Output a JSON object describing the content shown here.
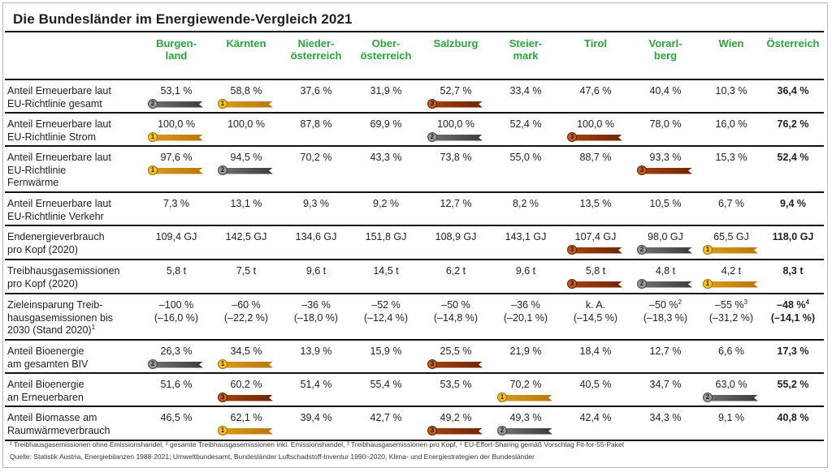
{
  "title": "Die Bundesländer im Energiewende-Vergleich 2021",
  "columns": [
    "Burgen-\nland",
    "Kärnten",
    "Nieder-\nösterreich",
    "Ober-\nösterreich",
    "Salzburg",
    "Steier-\nmark",
    "Tirol",
    "Vorarl-\nberg",
    "Wien",
    "Österreich"
  ],
  "rows": [
    {
      "label": "Anteil Erneuerbare laut\nEU-Richtlinie gesamt",
      "height": 41,
      "cells": [
        {
          "v": "53,1 %",
          "m": "silver"
        },
        {
          "v": "58,8 %",
          "m": "gold"
        },
        {
          "v": "37,6 %"
        },
        {
          "v": "31,9 %"
        },
        {
          "v": "52,7 %",
          "m": "bronze"
        },
        {
          "v": "33,4 %"
        },
        {
          "v": "47,6 %"
        },
        {
          "v": "40,4 %"
        },
        {
          "v": "10,3 %"
        },
        {
          "v": "36,4 %"
        }
      ]
    },
    {
      "label": "Anteil Erneuerbare laut\nEU-Richtlinie Strom",
      "height": 41,
      "cells": [
        {
          "v": "100,0 %",
          "m": "gold"
        },
        {
          "v": "100,0 %"
        },
        {
          "v": "87,8 %"
        },
        {
          "v": "69,9 %"
        },
        {
          "v": "100,0 %",
          "m": "silver"
        },
        {
          "v": "52,4 %"
        },
        {
          "v": "100,0 %",
          "m": "bronze"
        },
        {
          "v": "78,0 %"
        },
        {
          "v": "16,0 %"
        },
        {
          "v": "76,2 %"
        }
      ]
    },
    {
      "label": "Anteil Erneuerbare laut\nEU-Richtlinie\nFernwärme",
      "height": 57,
      "cells": [
        {
          "v": "97,6 %",
          "m": "gold"
        },
        {
          "v": "94,5 %",
          "m": "silver"
        },
        {
          "v": "70,2 %"
        },
        {
          "v": "43,3 %"
        },
        {
          "v": "73,8 %"
        },
        {
          "v": "55,0 %"
        },
        {
          "v": "88,7 %"
        },
        {
          "v": "93,3 %",
          "m": "bronze"
        },
        {
          "v": "15,3 %"
        },
        {
          "v": "52,4 %"
        }
      ]
    },
    {
      "label": "Anteil Erneuerbare laut\nEU-Richtlinie Verkehr",
      "height": 41,
      "cells": [
        {
          "v": "7,3 %"
        },
        {
          "v": "13,1 %"
        },
        {
          "v": "9,3 %"
        },
        {
          "v": "9,2 %"
        },
        {
          "v": "12,7 %"
        },
        {
          "v": "8,2 %"
        },
        {
          "v": "13,5 %"
        },
        {
          "v": "10,5 %"
        },
        {
          "v": "6,7 %"
        },
        {
          "v": "9,4 %"
        }
      ]
    },
    {
      "label": "Endenergieverbrauch\npro Kopf (2020)",
      "height": 42,
      "cells": [
        {
          "v": "109,4 GJ"
        },
        {
          "v": "142,5 GJ"
        },
        {
          "v": "134,6 GJ"
        },
        {
          "v": "151,8 GJ"
        },
        {
          "v": "108,9 GJ"
        },
        {
          "v": "143,1 GJ"
        },
        {
          "v": "107,4 GJ",
          "m": "bronze"
        },
        {
          "v": "98,0 GJ",
          "m": "silver"
        },
        {
          "v": "65,5 GJ",
          "m": "gold"
        },
        {
          "v": "118,0 GJ"
        }
      ]
    },
    {
      "label": "Treibhausgasemissionen\npro Kopf (2020)",
      "height": 42,
      "cells": [
        {
          "v": "5,8 t"
        },
        {
          "v": "7,5 t"
        },
        {
          "v": "9,6 t"
        },
        {
          "v": "14,5 t"
        },
        {
          "v": "6,2 t"
        },
        {
          "v": "9,6 t"
        },
        {
          "v": "5,8 t",
          "m": "bronze"
        },
        {
          "v": "4,8 t",
          "m": "silver"
        },
        {
          "v": "4,2 t",
          "m": "gold"
        },
        {
          "v": "8,3 t"
        }
      ]
    },
    {
      "label": "Zieleinsparung Treib-\nhausgasemissionen bis\n2030 (Stand 2020)",
      "labelSup": "1",
      "height": 57,
      "cells": [
        {
          "v": "–100 %\n(–16,0 %)"
        },
        {
          "v": "–60 %\n(–22,2 %)"
        },
        {
          "v": "–36 %\n(–18,0 %)"
        },
        {
          "v": "–52 %\n(–12,4 %)"
        },
        {
          "v": "–50 %\n(–14,8 %)"
        },
        {
          "v": "–36 %\n(–20,1 %)"
        },
        {
          "v": "k. A.\n(–14,5 %)"
        },
        {
          "v": "–50 %\n(–18,3 %)",
          "sup": "2"
        },
        {
          "v": "–55 %\n(–31,2 %)",
          "sup": "3"
        },
        {
          "v": "–48 %\n(–14,1 %)",
          "sup": "4"
        }
      ]
    },
    {
      "label": "Anteil Bioenergie\nam gesamten BIV",
      "height": 41,
      "cells": [
        {
          "v": "26,3 %",
          "m": "silver"
        },
        {
          "v": "34,5 %",
          "m": "gold"
        },
        {
          "v": "13,9 %"
        },
        {
          "v": "15,9 %"
        },
        {
          "v": "25,5 %",
          "m": "bronze"
        },
        {
          "v": "21,9 %"
        },
        {
          "v": "18,4 %"
        },
        {
          "v": "12,7 %"
        },
        {
          "v": "6,6 %"
        },
        {
          "v": "17,3 %"
        }
      ]
    },
    {
      "label": "Anteil Bioenergie\nan Erneuerbaren",
      "height": 41,
      "cells": [
        {
          "v": "51,6 %"
        },
        {
          "v": "60,2 %",
          "m": "bronze"
        },
        {
          "v": "51,4 %"
        },
        {
          "v": "55,4 %"
        },
        {
          "v": "53,5 %"
        },
        {
          "v": "70,2 %",
          "m": "gold"
        },
        {
          "v": "40,5 %"
        },
        {
          "v": "34,7 %"
        },
        {
          "v": "63,0 %",
          "m": "silver"
        },
        {
          "v": "55,2 %"
        }
      ]
    },
    {
      "label": "Anteil Biomasse am\nRaumwärmeverbrauch",
      "height": 42,
      "cells": [
        {
          "v": "46,5 %"
        },
        {
          "v": "62,1 %",
          "m": "gold"
        },
        {
          "v": "39,4 %"
        },
        {
          "v": "42,7 %"
        },
        {
          "v": "49,2 %",
          "m": "bronze"
        },
        {
          "v": "49,3 %",
          "m": "silver"
        },
        {
          "v": "42,4 %"
        },
        {
          "v": "34,3 %"
        },
        {
          "v": "9,1 %"
        },
        {
          "v": "40,8 %"
        }
      ]
    }
  ],
  "medal_labels": {
    "gold": "1",
    "silver": "2",
    "bronze": "3"
  },
  "footnotes": "¹ Treibhausgasemissionen ohne Emissionshandel, ² gesamte Treibhausgasemissionen inkl. Emissionshandel, ³ Treibhausgasemissionen pro Kopf, ⁴ EU-Effort-Sharing gemäß Vorschlag Fit-for-55-Paket",
  "source": "Quelle: Statistik Austria, Energiebilanzen 1988-2021; Umweltbundesamt, Bundesländer Luftschadstoff-Inventur 1990–2020, Klima- und Energiestrategien der Bundesländer"
}
